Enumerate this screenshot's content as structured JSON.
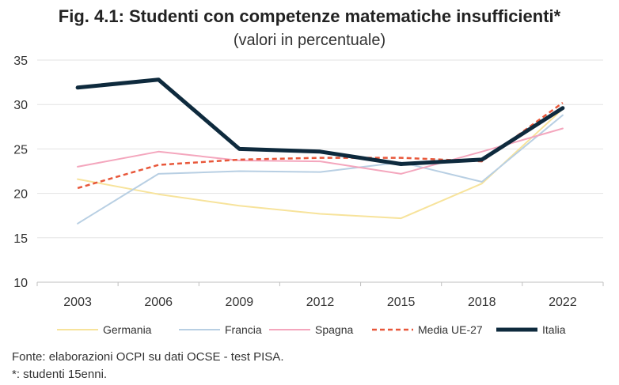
{
  "chart_data": {
    "type": "line",
    "title": "Fig. 4.1: Studenti con competenze matematiche insufficienti*",
    "subtitle": "(valori in percentuale)",
    "categories": [
      "2003",
      "2006",
      "2009",
      "2012",
      "2015",
      "2018",
      "2022"
    ],
    "ylim": [
      10,
      35
    ],
    "yticks": [
      10,
      15,
      20,
      25,
      30,
      35
    ],
    "grid": true,
    "legend_position": "bottom",
    "series": [
      {
        "name": "Germania",
        "values": [
          21.6,
          19.9,
          18.6,
          17.7,
          17.2,
          21.1,
          29.5
        ],
        "color": "#f7e39b",
        "style": "solid",
        "width": 2
      },
      {
        "name": "Francia",
        "values": [
          16.6,
          22.2,
          22.5,
          22.4,
          23.5,
          21.3,
          28.8
        ],
        "color": "#b8cfe3",
        "style": "solid",
        "width": 2
      },
      {
        "name": "Spagna",
        "values": [
          23.0,
          24.7,
          23.7,
          23.6,
          22.2,
          24.7,
          27.3
        ],
        "color": "#f4a6bd",
        "style": "solid",
        "width": 2
      },
      {
        "name": "Media UE-27",
        "values": [
          20.6,
          23.2,
          23.8,
          24.0,
          24.0,
          23.6,
          30.2
        ],
        "color": "#e8573a",
        "style": "dashed",
        "width": 2.5
      },
      {
        "name": "Italia",
        "values": [
          31.9,
          32.8,
          25.0,
          24.7,
          23.3,
          23.8,
          29.6
        ],
        "color": "#0e2a3d",
        "style": "solid",
        "width": 5
      }
    ]
  },
  "notes": {
    "source": "Fonte: elaborazioni OCPI su dati OCSE - test PISA.",
    "footnote": "*: studenti 15enni."
  }
}
